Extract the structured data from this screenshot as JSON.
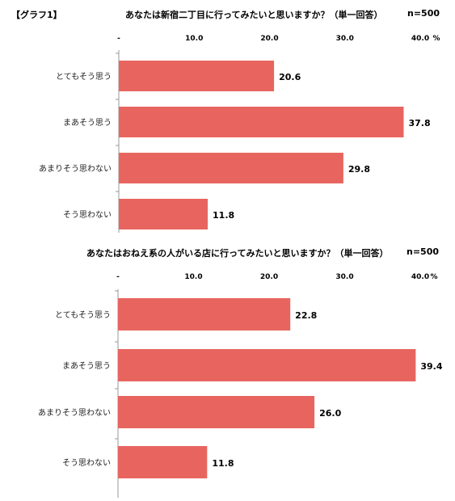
{
  "header": {
    "graph_label": "【グラフ1】"
  },
  "charts": [
    {
      "title": "あなたは新宿二丁目に行ってみたいと思いますか？（単一回答）",
      "n": "n=500"
    },
    {
      "title": "あなたはおねえ系の人がいる店に行ってみたいと思いますか？（単一回答）",
      "n": "n=500"
    }
  ],
  "chart_data": [
    {
      "type": "bar",
      "orientation": "horizontal",
      "title": "あなたは新宿二丁目に行ってみたいと思いますか？（単一回答）",
      "categories": [
        "とてもそう思う",
        "まあそう思う",
        "あまりそう思わない",
        "そう思わない"
      ],
      "values": [
        20.6,
        37.8,
        29.8,
        11.8
      ],
      "value_labels": [
        "20.6",
        "37.8",
        "29.8",
        "11.8"
      ],
      "xlim": [
        0,
        40
      ],
      "x_ticks": [
        "-",
        "10.0",
        "20.0",
        "30.0",
        "40.0"
      ],
      "x_unit": "%",
      "bar_color": "#e8655f",
      "grid": false
    },
    {
      "type": "bar",
      "orientation": "horizontal",
      "title": "あなたはおねえ系の人がいる店に行ってみたいと思いますか？（単一回答）",
      "categories": [
        "とてもそう思う",
        "まあそう思う",
        "あまりそう思わない",
        "そう思わない"
      ],
      "values": [
        22.8,
        39.4,
        26.0,
        11.8
      ],
      "value_labels": [
        "22.8",
        "39.4",
        "26.0",
        "11.8"
      ],
      "xlim": [
        0,
        40
      ],
      "x_ticks": [
        "-",
        "10.0",
        "20.0",
        "30.0",
        "40.0"
      ],
      "x_unit": "%",
      "bar_color": "#e8655f",
      "grid": false
    }
  ]
}
